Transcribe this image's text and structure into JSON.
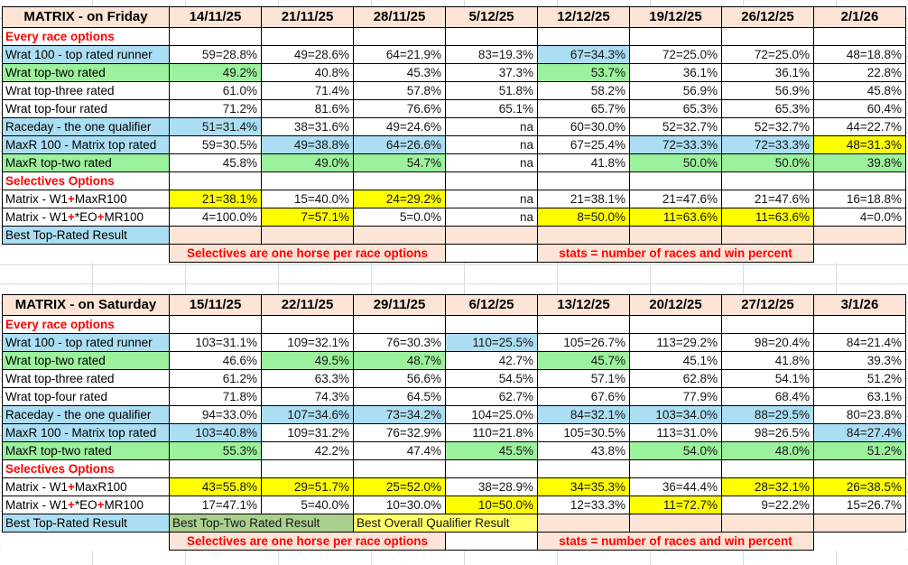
{
  "palette": {
    "header_peach": "#FCE4D6",
    "highlight_blue": "#ABDEF3",
    "highlight_green": "#9CF19C",
    "highlight_yellow": "#FFFF00",
    "muted_green": "#A9D08E",
    "pale_yellow": "#FFFF66",
    "accent_red": "#FF0000",
    "border_black": "#000000",
    "gridline_gray": "#DCDCDC"
  },
  "tables": [
    {
      "title": "MATRIX - on Friday",
      "dates": [
        "14/11/25",
        "21/11/25",
        "28/11/25",
        "5/12/25",
        "12/12/25",
        "19/12/25",
        "26/12/25",
        "2/1/26"
      ],
      "rows": [
        {
          "kind": "section",
          "label": "Every race options"
        },
        {
          "kind": "data",
          "labelBg": "b",
          "label": "Wrat 100 - top rated runner",
          "cells": [
            {
              "t": "59=28.8%"
            },
            {
              "t": "49=28.6%"
            },
            {
              "t": "64=21.9%"
            },
            {
              "t": "83=19.3%"
            },
            {
              "t": "67=34.3%",
              "bg": "b"
            },
            {
              "t": "72=25.0%"
            },
            {
              "t": "72=25.0%"
            },
            {
              "t": "48=18.8%"
            }
          ]
        },
        {
          "kind": "data",
          "labelBg": "g",
          "label": "Wrat top-two rated",
          "cells": [
            {
              "t": "49.2%",
              "bg": "g"
            },
            {
              "t": "40.8%"
            },
            {
              "t": "45.3%"
            },
            {
              "t": "37.3%"
            },
            {
              "t": "53.7%",
              "bg": "g"
            },
            {
              "t": "36.1%"
            },
            {
              "t": "36.1%"
            },
            {
              "t": "22.8%"
            }
          ]
        },
        {
          "kind": "data",
          "label": "Wrat top-three rated",
          "cells": [
            {
              "t": "61.0%"
            },
            {
              "t": "71.4%"
            },
            {
              "t": "57.8%"
            },
            {
              "t": "51.8%"
            },
            {
              "t": "58.2%"
            },
            {
              "t": "56.9%"
            },
            {
              "t": "56.9%"
            },
            {
              "t": "45.8%"
            }
          ]
        },
        {
          "kind": "data",
          "label": "Wrat top-four rated",
          "cells": [
            {
              "t": "71.2%"
            },
            {
              "t": "81.6%"
            },
            {
              "t": "76.6%"
            },
            {
              "t": "65.1%"
            },
            {
              "t": "65.7%"
            },
            {
              "t": "65.3%"
            },
            {
              "t": "65.3%"
            },
            {
              "t": "60.4%"
            }
          ]
        },
        {
          "kind": "data",
          "labelBg": "b",
          "label": "Raceday - the one qualifier",
          "cells": [
            {
              "t": "51=31.4%",
              "bg": "b"
            },
            {
              "t": "38=31.6%"
            },
            {
              "t": "49=24.6%"
            },
            {
              "t": "na"
            },
            {
              "t": "60=30.0%"
            },
            {
              "t": "52=32.7%"
            },
            {
              "t": "52=32.7%"
            },
            {
              "t": "44=22.7%"
            }
          ]
        },
        {
          "kind": "data",
          "labelBg": "b",
          "label": "MaxR 100 - Matrix top rated",
          "cells": [
            {
              "t": "59=30.5%"
            },
            {
              "t": "49=38.8%",
              "bg": "b"
            },
            {
              "t": "64=26.6%",
              "bg": "b"
            },
            {
              "t": "na"
            },
            {
              "t": "67=25.4%"
            },
            {
              "t": "72=33.3%",
              "bg": "b"
            },
            {
              "t": "72=33.3%",
              "bg": "b"
            },
            {
              "t": "48=31.3%",
              "bg": "y"
            }
          ]
        },
        {
          "kind": "data",
          "labelBg": "g",
          "label": "MaxR top-two rated",
          "cells": [
            {
              "t": "45.8%"
            },
            {
              "t": "49.0%",
              "bg": "g"
            },
            {
              "t": "54.7%",
              "bg": "g"
            },
            {
              "t": "na"
            },
            {
              "t": "41.8%"
            },
            {
              "t": "50.0%",
              "bg": "g"
            },
            {
              "t": "50.0%",
              "bg": "g"
            },
            {
              "t": "39.8%",
              "bg": "g"
            }
          ]
        },
        {
          "kind": "section",
          "label": "Selectives Options"
        },
        {
          "kind": "data",
          "label": [
            {
              "t": "Matrix - W1"
            },
            {
              "t": "+",
              "red": true
            },
            {
              "t": "MaxR100"
            }
          ],
          "cells": [
            {
              "t": "21=38.1%",
              "bg": "y"
            },
            {
              "t": "15=40.0%"
            },
            {
              "t": "24=29.2%",
              "bg": "y"
            },
            {
              "t": "na"
            },
            {
              "t": "21=38.1%"
            },
            {
              "t": "21=47.6%"
            },
            {
              "t": "21=47.6%"
            },
            {
              "t": "16=18.8%"
            }
          ]
        },
        {
          "kind": "data",
          "label": [
            {
              "t": "Matrix - W1"
            },
            {
              "t": "+",
              "red": true
            },
            {
              "t": "*EO"
            },
            {
              "t": "+",
              "red": true
            },
            {
              "t": "MR100"
            }
          ],
          "cells": [
            {
              "t": "4=100.0%"
            },
            {
              "t": "7=57.1%",
              "bg": "y"
            },
            {
              "t": "5=0.0%"
            },
            {
              "t": "na"
            },
            {
              "t": "8=50.0%",
              "bg": "y"
            },
            {
              "t": "11=63.6%",
              "bg": "y"
            },
            {
              "t": "11=63.6%",
              "bg": "y"
            },
            {
              "t": "4=0.0%"
            }
          ]
        },
        {
          "kind": "best",
          "labelBg": "b",
          "label": "Best Top-Rated Result",
          "cells": [
            {
              "bg": "p"
            },
            {
              "bg": "p"
            },
            {
              "bg": "p"
            },
            {
              "bg": "p"
            },
            {
              "bg": "p"
            },
            {
              "bg": "p"
            },
            {
              "bg": "p"
            },
            {
              "bg": "p"
            }
          ]
        },
        {
          "kind": "note",
          "cells": [
            {
              "t": "Selectives are one horse per race options",
              "span": 3,
              "bg": "p",
              "red": true
            },
            {
              "span": 1,
              "bordered": true
            },
            {
              "t": "stats = number of races and win percent",
              "span": 3,
              "bg": "p",
              "red": true
            },
            {
              "span": 1,
              "outside": true
            }
          ]
        }
      ]
    },
    {
      "title": "MATRIX - on Saturday",
      "dates": [
        "15/11/25",
        "22/11/25",
        "29/11/25",
        "6/12/25",
        "13/12/25",
        "20/12/25",
        "27/12/25",
        "3/1/26"
      ],
      "rows": [
        {
          "kind": "section",
          "label": "Every race options"
        },
        {
          "kind": "data",
          "labelBg": "b",
          "label": "Wrat 100 - top rated runner",
          "cells": [
            {
              "t": "103=31.1%"
            },
            {
              "t": "109=32.1%"
            },
            {
              "t": "76=30.3%"
            },
            {
              "t": "110=25.5%",
              "bg": "b"
            },
            {
              "t": "105=26.7%"
            },
            {
              "t": "113=29.2%"
            },
            {
              "t": "98=20.4%"
            },
            {
              "t": "84=21.4%"
            }
          ]
        },
        {
          "kind": "data",
          "labelBg": "g",
          "label": "Wrat top-two rated",
          "cells": [
            {
              "t": "46.6%"
            },
            {
              "t": "49.5%",
              "bg": "g"
            },
            {
              "t": "48.7%",
              "bg": "g"
            },
            {
              "t": "42.7%"
            },
            {
              "t": "45.7%",
              "bg": "g"
            },
            {
              "t": "45.1%"
            },
            {
              "t": "41.8%"
            },
            {
              "t": "39.3%"
            }
          ]
        },
        {
          "kind": "data",
          "label": "Wrat top-three rated",
          "cells": [
            {
              "t": "61.2%"
            },
            {
              "t": "63.3%"
            },
            {
              "t": "56.6%"
            },
            {
              "t": "54.5%"
            },
            {
              "t": "57.1%"
            },
            {
              "t": "62.8%"
            },
            {
              "t": "54.1%"
            },
            {
              "t": "51.2%"
            }
          ]
        },
        {
          "kind": "data",
          "label": "Wrat top-four rated",
          "cells": [
            {
              "t": "71.8%"
            },
            {
              "t": "74.3%"
            },
            {
              "t": "64.5%"
            },
            {
              "t": "62.7%"
            },
            {
              "t": "67.6%"
            },
            {
              "t": "77.9%"
            },
            {
              "t": "68.4%"
            },
            {
              "t": "63.1%"
            }
          ]
        },
        {
          "kind": "data",
          "labelBg": "b",
          "label": "Raceday - the one qualifier",
          "cells": [
            {
              "t": "94=33.0%"
            },
            {
              "t": "107=34.6%",
              "bg": "b"
            },
            {
              "t": "73=34.2%",
              "bg": "b"
            },
            {
              "t": "104=25.0%"
            },
            {
              "t": "84=32.1%",
              "bg": "b"
            },
            {
              "t": "103=34.0%",
              "bg": "b"
            },
            {
              "t": "88=29.5%",
              "bg": "b"
            },
            {
              "t": "80=23.8%"
            }
          ]
        },
        {
          "kind": "data",
          "labelBg": "b",
          "label": "MaxR 100 - Matrix top rated",
          "cells": [
            {
              "t": "103=40.8%",
              "bg": "b"
            },
            {
              "t": "109=31.2%"
            },
            {
              "t": "76=32.9%"
            },
            {
              "t": "110=21.8%"
            },
            {
              "t": "105=30.5%"
            },
            {
              "t": "113=31.0%"
            },
            {
              "t": "98=26.5%"
            },
            {
              "t": "84=27.4%",
              "bg": "b"
            }
          ]
        },
        {
          "kind": "data",
          "labelBg": "g",
          "label": "MaxR top-two rated",
          "cells": [
            {
              "t": "55.3%",
              "bg": "g"
            },
            {
              "t": "42.2%"
            },
            {
              "t": "47.4%"
            },
            {
              "t": "45.5%",
              "bg": "g"
            },
            {
              "t": "43.8%"
            },
            {
              "t": "54.0%",
              "bg": "g"
            },
            {
              "t": "48.0%",
              "bg": "g"
            },
            {
              "t": "51.2%",
              "bg": "g"
            }
          ]
        },
        {
          "kind": "section",
          "label": "Selectives Options"
        },
        {
          "kind": "data",
          "label": [
            {
              "t": "Matrix - W1"
            },
            {
              "t": "+",
              "red": true
            },
            {
              "t": "MaxR100"
            }
          ],
          "cells": [
            {
              "t": "43=55.8%",
              "bg": "y"
            },
            {
              "t": "29=51.7%",
              "bg": "y"
            },
            {
              "t": "25=52.0%",
              "bg": "y"
            },
            {
              "t": "38=28.9%"
            },
            {
              "t": "34=35.3%",
              "bg": "y"
            },
            {
              "t": "36=44.4%"
            },
            {
              "t": "28=32.1%",
              "bg": "y"
            },
            {
              "t": "26=38.5%",
              "bg": "y"
            }
          ]
        },
        {
          "kind": "data",
          "label": [
            {
              "t": "Matrix - W1"
            },
            {
              "t": "+",
              "red": true
            },
            {
              "t": "*EO"
            },
            {
              "t": "+",
              "red": true
            },
            {
              "t": "MR100"
            }
          ],
          "cells": [
            {
              "t": "17=47.1%"
            },
            {
              "t": "5=40.0%"
            },
            {
              "t": "10=30.0%"
            },
            {
              "t": "10=50.0%",
              "bg": "y"
            },
            {
              "t": "12=33.3%"
            },
            {
              "t": "11=72.7%",
              "bg": "y"
            },
            {
              "t": "9=22.2%"
            },
            {
              "t": "15=26.7%"
            }
          ]
        },
        {
          "kind": "best",
          "labelBg": "b",
          "label": "Best Top-Rated Result",
          "cells": [
            {
              "t": "Best Top-Two Rated Result",
              "bg": "mg",
              "span": 2,
              "left": true
            },
            {
              "t": "Best Overall Qualifier Result",
              "bg": "ly",
              "span": 2,
              "left": true
            },
            {
              "bg": "p"
            },
            {
              "bg": "p"
            },
            {
              "bg": "p"
            },
            {
              "bg": "p"
            }
          ]
        },
        {
          "kind": "note",
          "cells": [
            {
              "t": "Selectives are one horse per race options",
              "span": 3,
              "bg": "p",
              "red": true
            },
            {
              "span": 1,
              "bordered": true
            },
            {
              "t": "stats = number of races and win percent",
              "span": 3,
              "bg": "p",
              "red": true
            },
            {
              "span": 1,
              "outside": true
            }
          ]
        }
      ]
    }
  ]
}
